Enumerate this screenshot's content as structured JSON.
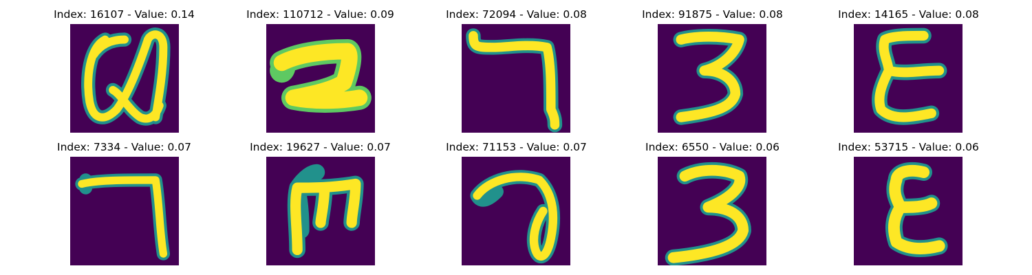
{
  "panels": [
    {
      "title": "Index: 16107 - Value: 0.14",
      "icon": "handwritten-letter-a-icon"
    },
    {
      "title": "Index: 110712 - Value: 0.09",
      "icon": "handwritten-digit-2-icon"
    },
    {
      "title": "Index: 72094 - Value: 0.08",
      "icon": "handwritten-digit-7-icon"
    },
    {
      "title": "Index: 91875 - Value: 0.08",
      "icon": "handwritten-digit-3-icon"
    },
    {
      "title": "Index: 14165 - Value: 0.08",
      "icon": "handwritten-letter-e-icon"
    },
    {
      "title": "Index: 7334 - Value: 0.07",
      "icon": "handwritten-digit-7-icon"
    },
    {
      "title": "Index: 19627 - Value: 0.07",
      "icon": "handwritten-letter-m-icon"
    },
    {
      "title": "Index: 71153 - Value: 0.07",
      "icon": "handwritten-digit-7-icon"
    },
    {
      "title": "Index: 6550 - Value: 0.06",
      "icon": "handwritten-digit-3-icon"
    },
    {
      "title": "Index: 53715 - Value: 0.06",
      "icon": "handwritten-letter-e-icon"
    }
  ],
  "colors": {
    "background": "#440154",
    "stroke_outer": "#21918c",
    "stroke_mid": "#5ec962",
    "stroke_core": "#fde725"
  }
}
